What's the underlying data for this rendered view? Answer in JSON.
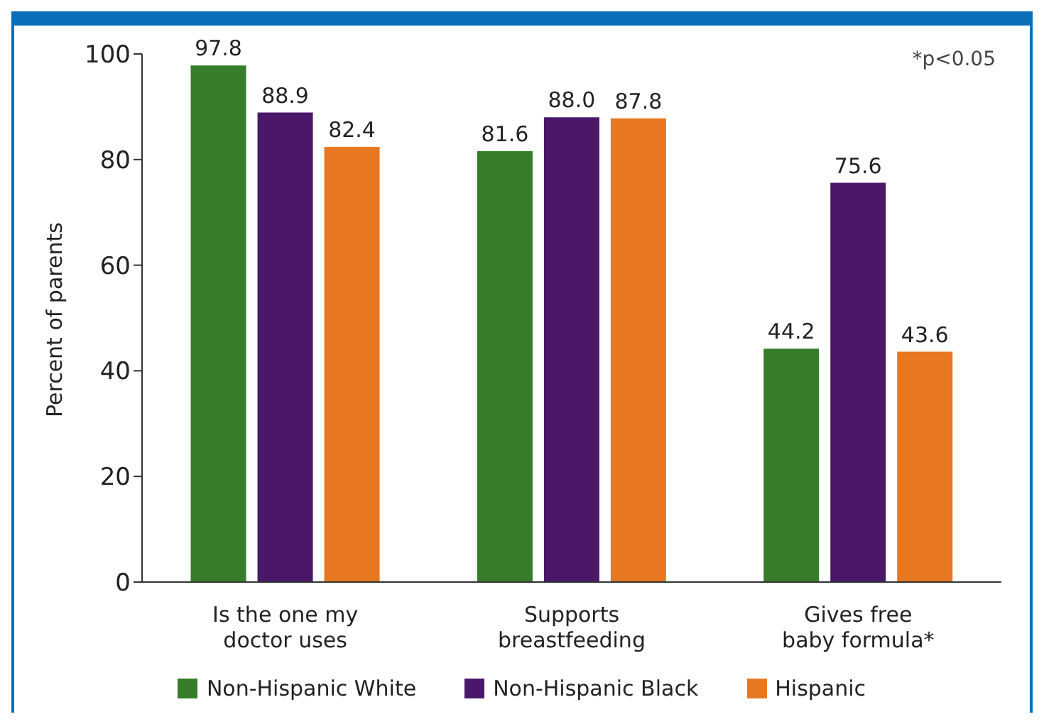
{
  "chart_data": {
    "type": "bar",
    "ylabel": "Percent of parents",
    "categories": [
      "Is the one my\ndoctor uses",
      "Supports\nbreastfeeding",
      "Gives free\nbaby formula*"
    ],
    "series": [
      {
        "name": "Non-Hispanic White",
        "color": "#367c2b",
        "values": [
          97.8,
          81.6,
          44.2
        ]
      },
      {
        "name": "Non-Hispanic Black",
        "color": "#4a1769",
        "values": [
          88.9,
          88.0,
          75.6
        ]
      },
      {
        "name": "Hispanic",
        "color": "#e87722",
        "values": [
          82.4,
          87.8,
          43.6
        ]
      }
    ],
    "value_labels": [
      [
        "97.8",
        "81.6",
        "44.2"
      ],
      [
        "88.9",
        "88.0",
        "75.6"
      ],
      [
        "82.4",
        "87.8",
        "43.6"
      ]
    ],
    "ylim": [
      0,
      100
    ],
    "yticks": [
      0,
      20,
      40,
      60,
      80,
      100
    ],
    "legend": "bottom",
    "annotations": [
      "*p<0.05"
    ]
  }
}
